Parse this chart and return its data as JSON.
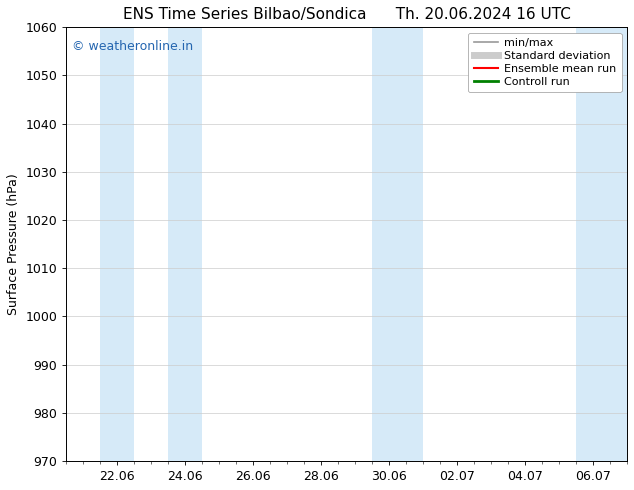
{
  "title_left": "ENS Time Series Bilbao/Sondica",
  "title_right": "Th. 20.06.2024 16 UTC",
  "ylabel": "Surface Pressure (hPa)",
  "ylim": [
    970,
    1060
  ],
  "yticks": [
    970,
    980,
    990,
    1000,
    1010,
    1020,
    1030,
    1040,
    1050,
    1060
  ],
  "xtick_labels": [
    "22.06",
    "24.06",
    "26.06",
    "28.06",
    "30.06",
    "02.07",
    "04.07",
    "06.07"
  ],
  "xtick_positions": [
    2,
    4,
    6,
    8,
    10,
    12,
    14,
    16
  ],
  "xlim": [
    0.5,
    17.0
  ],
  "shaded_bands": [
    {
      "x_start": 1.5,
      "x_end": 2.5
    },
    {
      "x_start": 3.5,
      "x_end": 4.5
    },
    {
      "x_start": 9.5,
      "x_end": 11.0
    },
    {
      "x_start": 15.5,
      "x_end": 17.0
    }
  ],
  "shaded_color": "#d6eaf8",
  "watermark_text": "© weatheronline.in",
  "watermark_color": "#2566b0",
  "background_color": "#ffffff",
  "legend_items": [
    {
      "label": "min/max",
      "color": "#999999",
      "lw": 1.2
    },
    {
      "label": "Standard deviation",
      "color": "#cccccc",
      "lw": 5
    },
    {
      "label": "Ensemble mean run",
      "color": "#ff0000",
      "lw": 1.5
    },
    {
      "label": "Controll run",
      "color": "#008000",
      "lw": 2.0
    }
  ],
  "grid_color": "#cccccc",
  "grid_lw": 0.5,
  "title_fontsize": 11,
  "ylabel_fontsize": 9,
  "tick_fontsize": 9,
  "legend_fontsize": 8,
  "watermark_fontsize": 9,
  "figsize": [
    6.34,
    4.9
  ],
  "dpi": 100
}
